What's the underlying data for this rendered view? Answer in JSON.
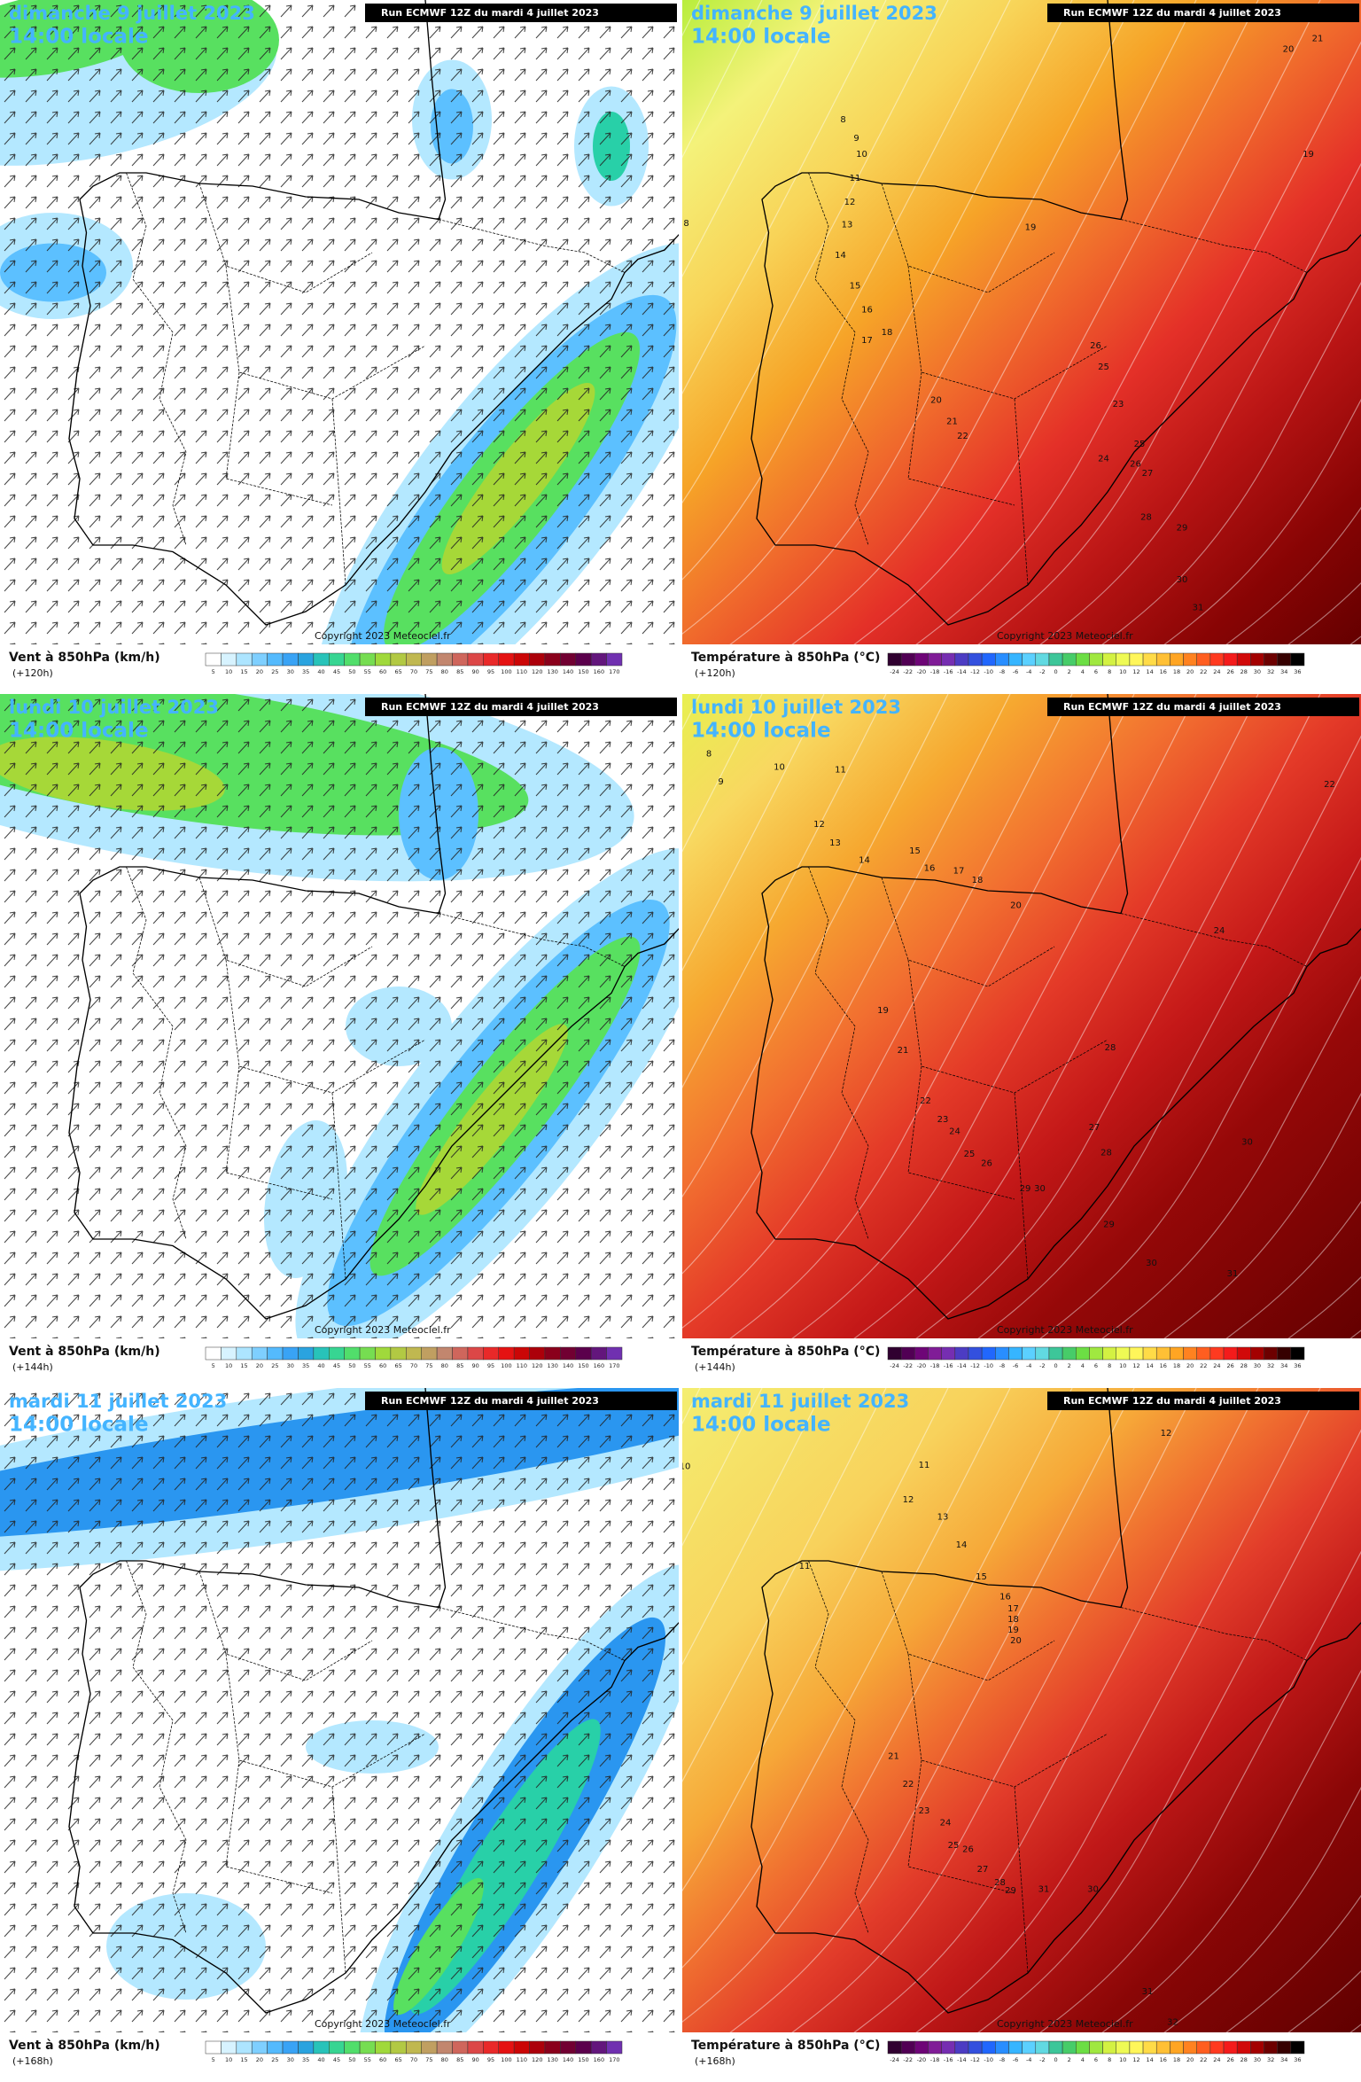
{
  "run_label": "Run ECMWF 12Z du mardi 4 juillet 2023",
  "copyright": "Copyright 2023 Meteociel.fr",
  "local_time": "14:00 locale",
  "wind_legend": {
    "title": "Vent à 850hPa (km/h)",
    "labels": [
      5,
      10,
      15,
      20,
      25,
      30,
      35,
      40,
      45,
      50,
      55,
      60,
      65,
      70,
      75,
      80,
      85,
      90,
      95,
      100,
      110,
      120,
      130,
      140,
      150,
      160,
      170
    ]
  },
  "temp_legend": {
    "title": "Température à 850hPa (°C)",
    "labels": [
      -24,
      -22,
      -20,
      -18,
      -16,
      -14,
      -12,
      -10,
      -8,
      -6,
      -4,
      -2,
      0,
      2,
      4,
      6,
      8,
      10,
      12,
      14,
      16,
      18,
      20,
      22,
      24,
      26,
      28,
      30,
      32,
      34,
      36
    ]
  },
  "rows": [
    {
      "date": "dimanche 9 juillet 2023",
      "lead": "(+120h)",
      "temp_contour_labels": [
        8,
        9,
        10,
        11,
        12,
        13,
        14,
        15,
        16,
        17,
        18,
        19,
        20,
        21,
        22,
        26,
        25,
        23,
        25,
        24,
        26,
        27,
        28,
        29,
        30,
        31,
        20,
        21,
        19,
        8
      ]
    },
    {
      "date": "lundi 10 juillet 2023",
      "lead": "(+144h)",
      "temp_contour_labels": [
        8,
        9,
        10,
        11,
        12,
        13,
        14,
        15,
        16,
        17,
        18,
        20,
        19,
        21,
        22,
        23,
        24,
        25,
        26,
        27,
        28,
        28,
        29,
        30,
        29,
        30,
        31,
        30,
        22,
        24
      ]
    },
    {
      "date": "mardi 11 juillet 2023",
      "lead": "(+168h)",
      "temp_contour_labels": [
        10,
        11,
        12,
        13,
        14,
        15,
        16,
        17,
        18,
        19,
        20,
        11,
        12,
        21,
        22,
        23,
        24,
        25,
        26,
        27,
        28,
        29,
        31,
        30,
        31,
        32
      ]
    }
  ]
}
